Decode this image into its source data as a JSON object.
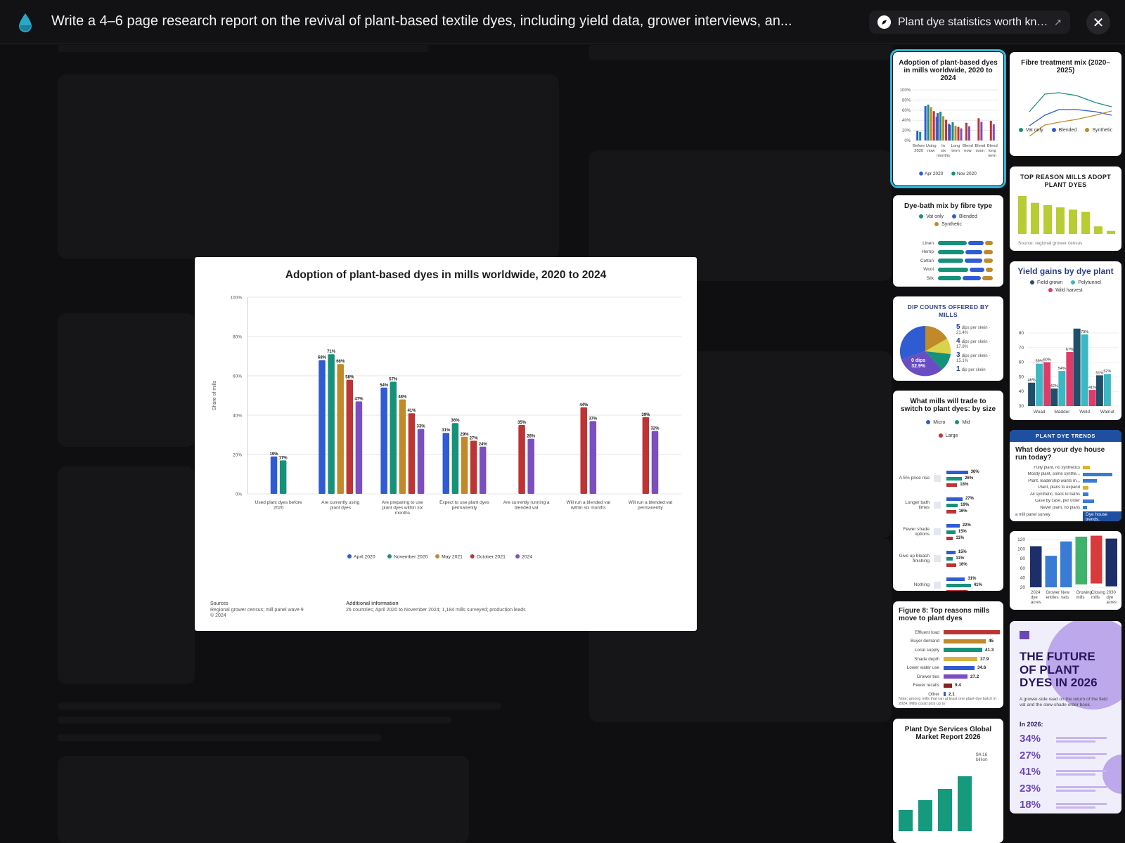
{
  "header": {
    "title": "Write a 4–6 page research report on the revival of plant-based textile dyes, including yield data, grower interviews, an...",
    "source_label": "Plant dye statistics worth kno...",
    "source_ext": "↗",
    "close": "✕"
  },
  "colors": {
    "blue": "#2f5bd3",
    "green": "#16917a",
    "gold": "#c0892a",
    "red": "#bd3434",
    "purple": "#7b4fc0",
    "teal": "#2bb8d8"
  },
  "main_chart": {
    "title": "Adoption of plant-based dyes in mills worldwide, 2020 to 2024",
    "ylabel": "Share of mills",
    "sources_label": "Sources",
    "sources_text": "Regional grower census; mill panel wave 9",
    "copyright": "© 2024",
    "info_label": "Additional information",
    "info_text": "26 countries; April 2020 to November 2024; 1,184 mills surveyed; production leads"
  },
  "chart_data": {
    "type": "bar",
    "ylim": [
      0,
      100
    ],
    "yticks": [
      "0%",
      "20%",
      "40%",
      "60%",
      "80%",
      "100%"
    ],
    "categories": [
      "Used plant dyes before 2020",
      "Are currently using plant dyes",
      "Are preparing to use plant dyes within six months",
      "Expect to use plant dyes permanently",
      "Are currently running a blended vat",
      "Will run a blended vat within six months",
      "Will run a blended vat permanently"
    ],
    "series": [
      {
        "name": "April 2020",
        "values": [
          19,
          68,
          54,
          31,
          null,
          null,
          null
        ]
      },
      {
        "name": "November 2020",
        "values": [
          17,
          71,
          57,
          36,
          null,
          null,
          null
        ]
      },
      {
        "name": "May 2021",
        "values": [
          null,
          66,
          48,
          29,
          null,
          null,
          null
        ]
      },
      {
        "name": "October 2021",
        "values": [
          null,
          58,
          41,
          27,
          35,
          44,
          39
        ]
      },
      {
        "name": "2024",
        "values": [
          null,
          47,
          33,
          24,
          28,
          37,
          32
        ]
      }
    ],
    "grid": true,
    "legend": "bottom"
  },
  "cards": {
    "adoption": {
      "title": "Adoption of plant-based dyes in mills worldwide, 2020 to 2024",
      "yticks": [
        "100%",
        "80%",
        "60%",
        "40%",
        "20%",
        "0%"
      ],
      "xlabels": [
        "Before 2020",
        "Using now",
        "In six months",
        "Long term",
        "Blend now",
        "Blend soon",
        "Blend long term"
      ],
      "legend": [
        "Apr 2020",
        "Nov 2020"
      ]
    },
    "fibre_mix": {
      "title": "Fibre treatment mix (2020–2025)",
      "legend": [
        "Vat only",
        "Blended",
        "Synthetic"
      ]
    },
    "top_reason": {
      "title": "TOP REASON MILLS ADOPT PLANT DYES",
      "source": "Source: regional grower census",
      "values": [
        100,
        82,
        76,
        70,
        64,
        58,
        20,
        8
      ]
    },
    "dyebath": {
      "title": "Dye-bath mix by fibre type",
      "legend": [
        "Vat only",
        "Blended",
        "Synthetic"
      ],
      "rows": [
        {
          "label": "Linen",
          "v": [
            55,
            30,
            15
          ]
        },
        {
          "label": "Hemp",
          "v": [
            50,
            32,
            18
          ]
        },
        {
          "label": "Cotton",
          "v": [
            48,
            34,
            18
          ]
        },
        {
          "label": "Wool",
          "v": [
            58,
            28,
            14
          ]
        },
        {
          "label": "Silk",
          "v": [
            45,
            35,
            20
          ]
        }
      ]
    },
    "yield": {
      "title": "Yield gains by dye plant",
      "legend": [
        "Field grown",
        "Polytunnel",
        "Wild harvest"
      ],
      "yticks": [
        "80",
        "70",
        "60",
        "50",
        "40",
        "30"
      ],
      "groups": [
        "Woad",
        "Madder",
        "Weld",
        "Walnut"
      ],
      "labels": [
        [
          "46%",
          "59%",
          "60%"
        ],
        [
          "42%",
          "54%",
          "67%"
        ],
        [
          "83%",
          "79%",
          "41%"
        ],
        [
          "51%",
          "52%",
          ""
        ]
      ]
    },
    "dip": {
      "title": "DIP COUNTS OFFERED BY MILLS",
      "center_label": "0 dips",
      "center_value": "32.9%",
      "items": [
        {
          "n": "5",
          "t": "dips per skein · 21.4%"
        },
        {
          "n": "4",
          "t": "dips per skein · 17.8%"
        },
        {
          "n": "3",
          "t": "dips per skein · 15.1%"
        },
        {
          "n": "1",
          "t": "dip per skein"
        }
      ]
    },
    "tradeoff": {
      "title": "What mills will trade to switch to plant dyes: by size",
      "legend": [
        "Micro",
        "Mid",
        "Large"
      ],
      "rows": [
        {
          "label": "A 5% price rise",
          "v": [
            "36%",
            "26%",
            "18%"
          ]
        },
        {
          "label": "Longer bath times",
          "v": [
            "27%",
            "19%",
            "16%"
          ]
        },
        {
          "label": "Fewer shade options",
          "v": [
            "22%",
            "15%",
            "11%"
          ]
        },
        {
          "label": "Give up bleach finishing",
          "v": [
            "15%",
            "11%",
            "16%"
          ]
        },
        {
          "label": "Nothing",
          "v": [
            "31%",
            "41%",
            ""
          ]
        }
      ]
    },
    "trends": {
      "banner": "PLANT DYE TRENDS",
      "question": "What does your dye house run today?",
      "rows": [
        "Fully plant, no synthetics",
        "Mostly plant, some synthe...",
        "Plant, leadership wants m...",
        "Plant, plans to expand",
        "All synthetic, back to baths",
        "Case by case, per order",
        "Never plant, no plans"
      ],
      "foot": "a mill panel survey",
      "tag": "Dye house trends,"
    },
    "counts": {
      "yticks": [
        "120",
        "100",
        "80",
        "60",
        "40",
        "20"
      ],
      "labels": [
        "2024 dye acres",
        "Grower entries",
        "New vats",
        "Growing mills",
        "Closing mills",
        "2030 dye acres"
      ]
    },
    "fig8": {
      "title": "Figure 8: Top reasons mills move to plant dyes",
      "rows": [
        {
          "label": "Effluent load",
          "v": ""
        },
        {
          "label": "Buyer demand",
          "v": "45"
        },
        {
          "label": "Local supply",
          "v": "41.3"
        },
        {
          "label": "Shade depth",
          "v": "37.9"
        },
        {
          "label": "Lower water use",
          "v": "34.6"
        },
        {
          "label": "Grower ties",
          "v": "27.2"
        },
        {
          "label": "Fewer recalls",
          "v": "9.4"
        },
        {
          "label": "Other",
          "v": "2.1"
        }
      ],
      "note": "Note: among mills that ran at least one plant-dye batch in 2024. Mills could pick up to"
    },
    "future": {
      "title": "THE FUTURE OF PLANT DYES IN 2026",
      "sub": "A grower-side read on the return of the field vat and the slow-shade order book.",
      "in": "In 2026:",
      "stats": [
        "34%",
        "27%",
        "41%",
        "23%",
        "18%"
      ]
    },
    "market": {
      "title": "Plant Dye Services Global Market Report 2026",
      "value": "$4.16",
      "unit": "billion"
    }
  }
}
